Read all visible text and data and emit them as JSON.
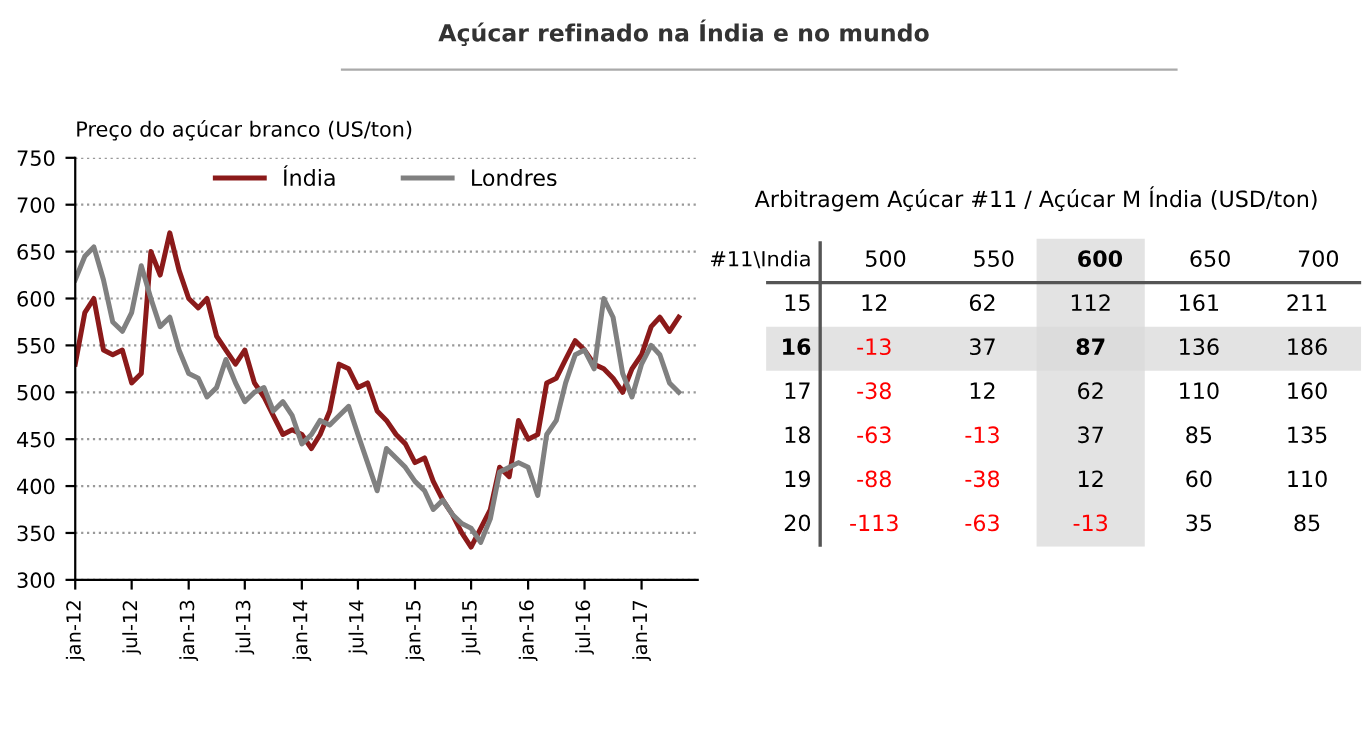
{
  "chart_data": [
    {
      "type": "line",
      "title": "Açúcar refinado na Índia e no mundo",
      "subtitle": "Preço do açúcar branco (US/ton)",
      "x": [
        "2012-01",
        "2012-02",
        "2012-03",
        "2012-04",
        "2012-05",
        "2012-06",
        "2012-07",
        "2012-08",
        "2012-09",
        "2012-10",
        "2012-11",
        "2012-12",
        "2013-01",
        "2013-02",
        "2013-03",
        "2013-04",
        "2013-05",
        "2013-06",
        "2013-07",
        "2013-08",
        "2013-09",
        "2013-10",
        "2013-11",
        "2013-12",
        "2014-01",
        "2014-02",
        "2014-03",
        "2014-04",
        "2014-05",
        "2014-06",
        "2014-07",
        "2014-08",
        "2014-09",
        "2014-10",
        "2014-11",
        "2014-12",
        "2015-01",
        "2015-02",
        "2015-03",
        "2015-04",
        "2015-05",
        "2015-06",
        "2015-07",
        "2015-08",
        "2015-09",
        "2015-10",
        "2015-11",
        "2015-12",
        "2016-01",
        "2016-02",
        "2016-03",
        "2016-04",
        "2016-05",
        "2016-06",
        "2016-07",
        "2016-08",
        "2016-09",
        "2016-10",
        "2016-11",
        "2016-12",
        "2017-01",
        "2017-02",
        "2017-03",
        "2017-04",
        "2017-05"
      ],
      "series": [
        {
          "name": "Índia",
          "color": "#8b1a1a",
          "values": [
            530,
            585,
            600,
            545,
            540,
            545,
            510,
            520,
            650,
            625,
            670,
            630,
            600,
            590,
            600,
            560,
            545,
            530,
            545,
            510,
            495,
            475,
            455,
            460,
            455,
            440,
            455,
            480,
            530,
            525,
            505,
            510,
            480,
            470,
            455,
            445,
            425,
            430,
            405,
            385,
            370,
            350,
            335,
            355,
            375,
            420,
            410,
            470,
            450,
            455,
            510,
            515,
            535,
            555,
            545,
            530,
            525,
            515,
            500,
            525,
            540,
            570,
            580,
            565,
            580
          ]
        },
        {
          "name": "Londres",
          "color": "#808080",
          "values": [
            620,
            645,
            655,
            620,
            575,
            565,
            585,
            635,
            600,
            570,
            580,
            545,
            520,
            515,
            495,
            505,
            535,
            510,
            490,
            500,
            505,
            480,
            490,
            475,
            445,
            455,
            470,
            465,
            475,
            485,
            455,
            425,
            395,
            440,
            430,
            420,
            405,
            395,
            375,
            385,
            370,
            360,
            355,
            340,
            365,
            415,
            420,
            425,
            420,
            390,
            455,
            470,
            510,
            540,
            545,
            525,
            600,
            580,
            520,
            495,
            530,
            550,
            540,
            510,
            500
          ]
        }
      ],
      "xlim": [
        "2012-01",
        "2017-07"
      ],
      "xticks": [
        {
          "value": "2012-01",
          "label": "jan-12"
        },
        {
          "value": "2012-07",
          "label": "jul-12"
        },
        {
          "value": "2013-01",
          "label": "jan-13"
        },
        {
          "value": "2013-07",
          "label": "jul-13"
        },
        {
          "value": "2014-01",
          "label": "jan-14"
        },
        {
          "value": "2014-07",
          "label": "jul-14"
        },
        {
          "value": "2015-01",
          "label": "jan-15"
        },
        {
          "value": "2015-07",
          "label": "jul-15"
        },
        {
          "value": "2016-01",
          "label": "jan-16"
        },
        {
          "value": "2016-07",
          "label": "jul-16"
        },
        {
          "value": "2017-01",
          "label": "jan-17"
        }
      ],
      "ylim": [
        300,
        750
      ],
      "yticks": [
        300,
        350,
        400,
        450,
        500,
        550,
        600,
        650,
        700,
        750
      ],
      "grid": "y",
      "legend": "top",
      "marker": "none",
      "line_style": "solid"
    },
    {
      "type": "heatmap",
      "title": "Arbitragem Açúcar #11 / Açúcar M Índia (USD/ton)",
      "ylabel": "#11\\India",
      "categories": [
        "500",
        "550",
        "600",
        "650",
        "700"
      ],
      "y_categories": [
        "15",
        "16",
        "17",
        "18",
        "19",
        "20"
      ],
      "cells": [
        [
          12,
          62,
          112,
          161,
          211
        ],
        [
          -13,
          37,
          87,
          136,
          186
        ],
        [
          -38,
          12,
          62,
          110,
          160
        ],
        [
          -63,
          -13,
          37,
          85,
          135
        ],
        [
          -88,
          -38,
          12,
          60,
          110
        ],
        [
          -113,
          -63,
          -13,
          35,
          85
        ]
      ],
      "data_labels": true,
      "bands": [
        {
          "axis": "x",
          "from": "600",
          "to": "600",
          "color": "#d9d9d9"
        },
        {
          "axis": "y",
          "from": "16",
          "to": "16",
          "color": "#d9d9d9"
        }
      ]
    }
  ]
}
